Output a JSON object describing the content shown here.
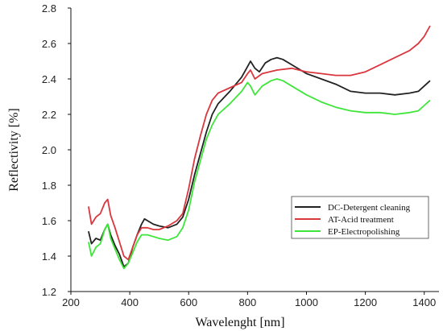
{
  "chart_data": {
    "type": "line",
    "xlabel": "Wavelenght [nm]",
    "ylabel": "Reflectivity [%]",
    "xlim": [
      200,
      1450
    ],
    "ylim": [
      1.2,
      2.8
    ],
    "xticks": [
      200,
      400,
      600,
      800,
      1000,
      1200,
      1400
    ],
    "yticks": [
      1.2,
      1.4,
      1.6,
      1.8,
      2.0,
      2.2,
      2.4,
      2.6,
      2.8
    ],
    "xtick_labels": [
      "200",
      "400",
      "600",
      "800",
      "1000",
      "1200",
      "1400"
    ],
    "ytick_labels": [
      "1.2",
      "1.4",
      "1.6",
      "1.8",
      "2.0",
      "2.2",
      "2.4",
      "2.6",
      "2.8"
    ],
    "legend_position": "right",
    "grid": false,
    "series": [
      {
        "name": "DC-Detergent cleaning",
        "color": "#222222",
        "x": [
          260,
          270,
          285,
          300,
          315,
          325,
          335,
          350,
          365,
          380,
          395,
          410,
          425,
          440,
          450,
          460,
          480,
          500,
          530,
          560,
          580,
          600,
          620,
          640,
          660,
          680,
          700,
          740,
          780,
          800,
          810,
          825,
          840,
          860,
          880,
          900,
          920,
          950,
          1000,
          1050,
          1100,
          1150,
          1200,
          1250,
          1300,
          1350,
          1380,
          1400,
          1420
        ],
        "y": [
          1.54,
          1.47,
          1.5,
          1.49,
          1.55,
          1.58,
          1.52,
          1.46,
          1.41,
          1.34,
          1.36,
          1.45,
          1.52,
          1.58,
          1.61,
          1.6,
          1.58,
          1.57,
          1.56,
          1.58,
          1.62,
          1.72,
          1.86,
          1.98,
          2.1,
          2.2,
          2.26,
          2.33,
          2.41,
          2.47,
          2.5,
          2.46,
          2.44,
          2.49,
          2.51,
          2.52,
          2.51,
          2.48,
          2.43,
          2.4,
          2.37,
          2.33,
          2.32,
          2.32,
          2.31,
          2.32,
          2.33,
          2.36,
          2.39
        ]
      },
      {
        "name": "AT-Acid treatment",
        "color": "#d9363e",
        "x": [
          260,
          270,
          285,
          300,
          315,
          325,
          335,
          350,
          365,
          380,
          395,
          410,
          425,
          440,
          460,
          480,
          500,
          530,
          560,
          580,
          600,
          620,
          640,
          660,
          680,
          700,
          740,
          780,
          800,
          810,
          825,
          850,
          900,
          950,
          1000,
          1050,
          1100,
          1150,
          1200,
          1250,
          1300,
          1350,
          1380,
          1400,
          1420
        ],
        "y": [
          1.68,
          1.58,
          1.62,
          1.64,
          1.7,
          1.72,
          1.63,
          1.56,
          1.48,
          1.4,
          1.38,
          1.45,
          1.52,
          1.56,
          1.56,
          1.55,
          1.55,
          1.57,
          1.6,
          1.64,
          1.78,
          1.95,
          2.08,
          2.2,
          2.28,
          2.32,
          2.35,
          2.38,
          2.43,
          2.45,
          2.4,
          2.43,
          2.45,
          2.46,
          2.44,
          2.43,
          2.42,
          2.42,
          2.44,
          2.48,
          2.52,
          2.56,
          2.6,
          2.64,
          2.7
        ]
      },
      {
        "name": "EP-Electropolishing",
        "color": "#3fe63a",
        "x": [
          260,
          270,
          285,
          300,
          315,
          325,
          335,
          350,
          365,
          380,
          395,
          410,
          425,
          440,
          460,
          480,
          500,
          530,
          560,
          580,
          600,
          620,
          640,
          660,
          680,
          700,
          740,
          780,
          800,
          810,
          825,
          850,
          880,
          900,
          920,
          950,
          1000,
          1050,
          1100,
          1150,
          1200,
          1250,
          1300,
          1350,
          1380,
          1400,
          1420
        ],
        "y": [
          1.48,
          1.4,
          1.45,
          1.47,
          1.55,
          1.58,
          1.5,
          1.44,
          1.38,
          1.33,
          1.36,
          1.42,
          1.48,
          1.52,
          1.52,
          1.51,
          1.5,
          1.49,
          1.51,
          1.56,
          1.66,
          1.82,
          1.94,
          2.06,
          2.14,
          2.2,
          2.26,
          2.33,
          2.38,
          2.36,
          2.31,
          2.36,
          2.39,
          2.4,
          2.39,
          2.36,
          2.31,
          2.27,
          2.24,
          2.22,
          2.21,
          2.21,
          2.2,
          2.21,
          2.22,
          2.25,
          2.28
        ]
      }
    ]
  }
}
